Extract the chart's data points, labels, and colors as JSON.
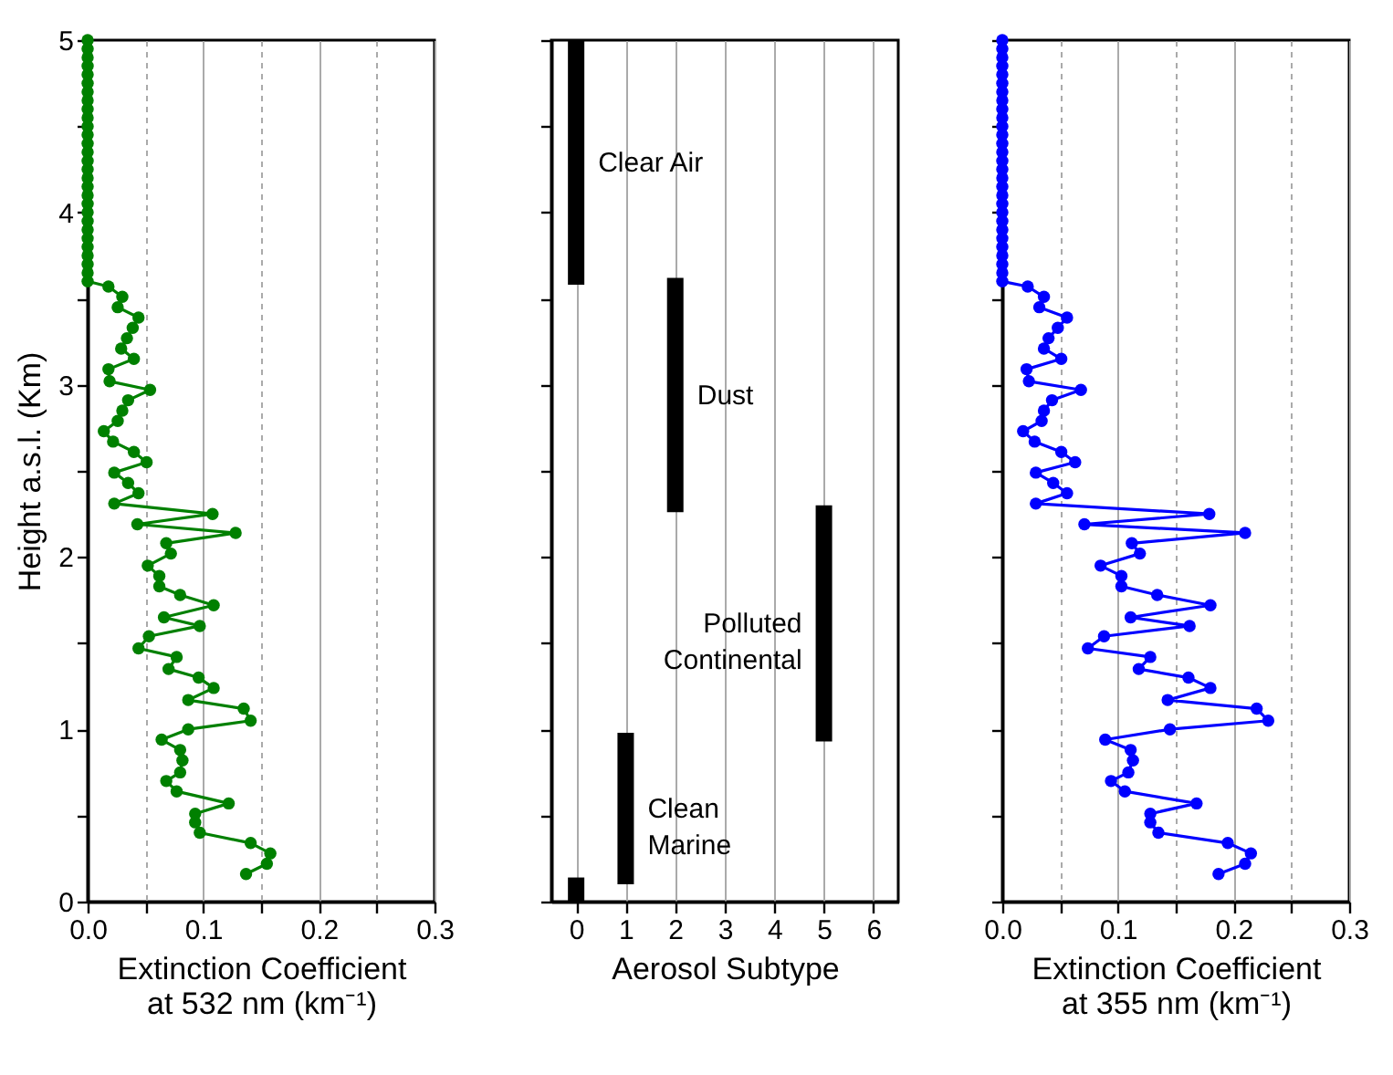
{
  "chart_data": [
    {
      "type": "line",
      "orientation": "horizontal",
      "xlabel": "Extinction Coefficient\nat 532 nm (km⁻¹)",
      "ylabel": "Height a.s.l. (Km)",
      "xlim": [
        0,
        0.3
      ],
      "ylim": [
        0,
        5
      ],
      "xticks": [
        {
          "value": 0,
          "label": "0.0"
        },
        {
          "value": 0.05,
          "label": null
        },
        {
          "value": 0.1,
          "label": "0.1"
        },
        {
          "value": 0.15,
          "label": null
        },
        {
          "value": 0.2,
          "label": "0.2"
        },
        {
          "value": 0.25,
          "label": null
        },
        {
          "value": 0.3,
          "label": "0.3"
        }
      ],
      "yticks": [
        0,
        {
          "value": 0.5,
          "label": null
        },
        1,
        {
          "value": 1.5,
          "label": null
        },
        2,
        {
          "value": 2.5,
          "label": null
        },
        3,
        {
          "value": 3.5,
          "label": null
        },
        4,
        {
          "value": 4.5,
          "label": null
        },
        5
      ],
      "grid": "x",
      "marker": "circle",
      "line_style": "solid",
      "series": [
        {
          "color": "#008000",
          "values": [
            0.137,
            0.155,
            0.158,
            0.141,
            0.097,
            0.093,
            0.093,
            0.122,
            0.077,
            0.068,
            0.08,
            0.082,
            0.08,
            0.064,
            0.087,
            0.141,
            0.135,
            0.087,
            0.109,
            0.096,
            0.07,
            0.077,
            0.044,
            0.053,
            0.097,
            0.066,
            0.109,
            0.08,
            0.062,
            0.062,
            0.052,
            0.072,
            0.068,
            0.128,
            0.043,
            0.108,
            0.023,
            0.044,
            0.035,
            0.023,
            0.051,
            0.04,
            0.022,
            0.014,
            0.026,
            0.03,
            0.035,
            0.054,
            0.019,
            0.018,
            0.04,
            0.029,
            0.034,
            0.039,
            0.044,
            0.026,
            0.03,
            0.018,
            0,
            0,
            0,
            0,
            0,
            0,
            0,
            0,
            0,
            0,
            0,
            0,
            0,
            0,
            0,
            0,
            0,
            0,
            0,
            0,
            0,
            0,
            0,
            0,
            0,
            0,
            0,
            0,
            0
          ],
          "x": [
            0.16,
            0.22,
            0.28,
            0.34,
            0.4,
            0.46,
            0.51,
            0.57,
            0.64,
            0.7,
            0.75,
            0.82,
            0.88,
            0.94,
            1.0,
            1.05,
            1.12,
            1.17,
            1.24,
            1.3,
            1.35,
            1.42,
            1.47,
            1.54,
            1.6,
            1.65,
            1.72,
            1.78,
            1.83,
            1.89,
            1.95,
            2.02,
            2.08,
            2.14,
            2.19,
            2.25,
            2.31,
            2.37,
            2.43,
            2.49,
            2.55,
            2.61,
            2.67,
            2.73,
            2.79,
            2.85,
            2.91,
            2.97,
            3.02,
            3.09,
            3.15,
            3.21,
            3.27,
            3.33,
            3.39,
            3.45,
            3.51,
            3.57,
            3.6,
            3.65,
            3.7,
            3.75,
            3.8,
            3.85,
            3.9,
            3.95,
            4.0,
            4.05,
            4.1,
            4.15,
            4.2,
            4.25,
            4.3,
            4.35,
            4.4,
            4.45,
            4.5,
            4.55,
            4.6,
            4.65,
            4.7,
            4.75,
            4.8,
            4.85,
            4.9,
            4.95,
            5.0
          ]
        }
      ]
    },
    {
      "type": "bar",
      "xlabel": "Aerosol Subtype",
      "xlim": [
        -0.5,
        6.5
      ],
      "ylim": [
        0,
        5
      ],
      "xticks": [
        0,
        1,
        2,
        3,
        4,
        5,
        6
      ],
      "yticks": [
        0,
        {
          "value": 0.5,
          "label": null
        },
        1,
        {
          "value": 1.5,
          "label": null
        },
        2,
        {
          "value": 2.5,
          "label": null
        },
        3,
        {
          "value": 3.5,
          "label": null
        },
        4,
        {
          "value": 4.5,
          "label": null
        },
        5
      ],
      "tick_labels": "x",
      "grid": "x",
      "series": [
        {
          "color": "#000000",
          "x": [
            0,
            1,
            2,
            5
          ],
          "base": [
            3.58,
            0.1,
            2.26,
            0.93
          ],
          "values": [
            1.42,
            0.88,
            1.36,
            1.37
          ]
        },
        {
          "color": "#000000",
          "x": [
            0
          ],
          "base": [
            0
          ],
          "values": [
            0.14
          ]
        }
      ],
      "annotations": [
        "Clear Air",
        "Clean\nMarine",
        "Dust",
        "Polluted\nContinental"
      ]
    },
    {
      "type": "line",
      "orientation": "horizontal",
      "xlabel": "Extinction Coefficient\nat 355 nm (km⁻¹)",
      "xlim": [
        0,
        0.3
      ],
      "ylim": [
        0,
        5
      ],
      "xticks": [
        {
          "value": 0,
          "label": "0.0"
        },
        {
          "value": 0.05,
          "label": null
        },
        {
          "value": 0.1,
          "label": "0.1"
        },
        {
          "value": 0.15,
          "label": null
        },
        {
          "value": 0.2,
          "label": "0.2"
        },
        {
          "value": 0.25,
          "label": null
        },
        {
          "value": 0.3,
          "label": "0.3"
        }
      ],
      "yticks": [
        0,
        {
          "value": 0.5,
          "label": null
        },
        1,
        {
          "value": 1.5,
          "label": null
        },
        2,
        {
          "value": 2.5,
          "label": null
        },
        3,
        {
          "value": 3.5,
          "label": null
        },
        4,
        {
          "value": 4.5,
          "label": null
        },
        5
      ],
      "tick_labels": "x",
      "grid": "x",
      "marker": "circle",
      "line_style": "solid",
      "series": [
        {
          "color": "#0000ff",
          "values": [
            0.187,
            0.21,
            0.215,
            0.195,
            0.135,
            0.128,
            0.128,
            0.168,
            0.106,
            0.094,
            0.109,
            0.113,
            0.111,
            0.089,
            0.145,
            0.23,
            0.22,
            0.143,
            0.18,
            0.161,
            0.118,
            0.128,
            0.074,
            0.088,
            0.162,
            0.111,
            0.18,
            0.134,
            0.103,
            0.103,
            0.085,
            0.119,
            0.112,
            0.21,
            0.071,
            0.179,
            0.029,
            0.056,
            0.044,
            0.029,
            0.063,
            0.051,
            0.028,
            0.018,
            0.034,
            0.036,
            0.043,
            0.068,
            0.023,
            0.021,
            0.051,
            0.036,
            0.04,
            0.048,
            0.056,
            0.032,
            0.036,
            0.022,
            0,
            0,
            0,
            0,
            0,
            0,
            0,
            0,
            0,
            0,
            0,
            0,
            0,
            0,
            0,
            0,
            0,
            0,
            0,
            0,
            0,
            0,
            0,
            0,
            0,
            0,
            0,
            0,
            0
          ],
          "x": [
            0.16,
            0.22,
            0.28,
            0.34,
            0.4,
            0.46,
            0.51,
            0.57,
            0.64,
            0.7,
            0.75,
            0.82,
            0.88,
            0.94,
            1.0,
            1.05,
            1.12,
            1.17,
            1.24,
            1.3,
            1.35,
            1.42,
            1.47,
            1.54,
            1.6,
            1.65,
            1.72,
            1.78,
            1.83,
            1.89,
            1.95,
            2.02,
            2.08,
            2.14,
            2.19,
            2.25,
            2.31,
            2.37,
            2.43,
            2.49,
            2.55,
            2.61,
            2.67,
            2.73,
            2.79,
            2.85,
            2.91,
            2.97,
            3.02,
            3.09,
            3.15,
            3.21,
            3.27,
            3.33,
            3.39,
            3.45,
            3.51,
            3.57,
            3.6,
            3.65,
            3.7,
            3.75,
            3.8,
            3.85,
            3.9,
            3.95,
            4.0,
            4.05,
            4.1,
            4.15,
            4.2,
            4.25,
            4.3,
            4.35,
            4.4,
            4.45,
            4.5,
            4.55,
            4.6,
            4.65,
            4.7,
            4.75,
            4.8,
            4.85,
            4.9,
            4.95,
            5.0
          ]
        }
      ]
    }
  ]
}
